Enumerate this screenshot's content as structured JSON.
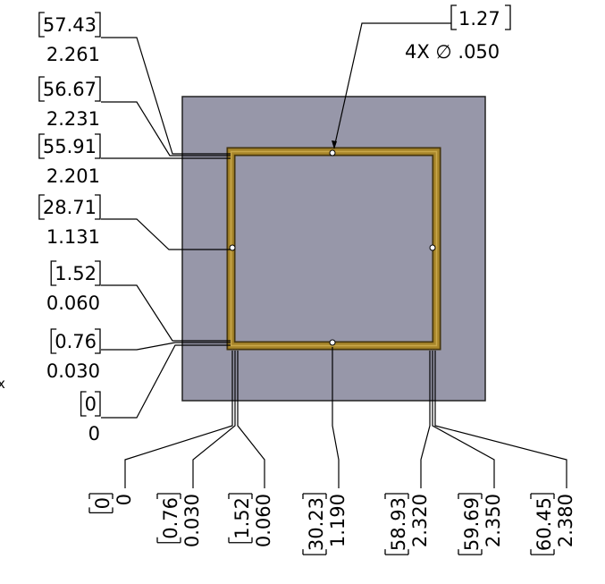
{
  "colors": {
    "board": "#9797a9",
    "board_outline": "#222222",
    "trace": "#a8862a",
    "trace_dark": "#5a4410",
    "trace_highlight": "#c9a84a",
    "hole": "#ffffff",
    "ink": "#000000"
  },
  "callout": {
    "metric": "1.27",
    "imperial": "4X ∅ .050"
  },
  "left_dims": [
    {
      "metric": "57.43",
      "imperial": "2.261"
    },
    {
      "metric": "56.67",
      "imperial": "2.231"
    },
    {
      "metric": "55.91",
      "imperial": "2.201"
    },
    {
      "metric": "28.71",
      "imperial": "1.131"
    },
    {
      "metric": "1.52",
      "imperial": "0.060"
    },
    {
      "metric": "0.76",
      "imperial": "0.030"
    },
    {
      "metric": "0",
      "imperial": "0"
    }
  ],
  "bottom_dims": [
    {
      "metric": "0",
      "imperial": "0"
    },
    {
      "metric": "0.76",
      "imperial": "0.030"
    },
    {
      "metric": "1.52",
      "imperial": "0.060"
    },
    {
      "metric": "30.23",
      "imperial": "1.190"
    },
    {
      "metric": "58.93",
      "imperial": "2.320"
    },
    {
      "metric": "59.69",
      "imperial": "2.350"
    },
    {
      "metric": "60.45",
      "imperial": "2.380"
    }
  ],
  "stray_mark": "x"
}
